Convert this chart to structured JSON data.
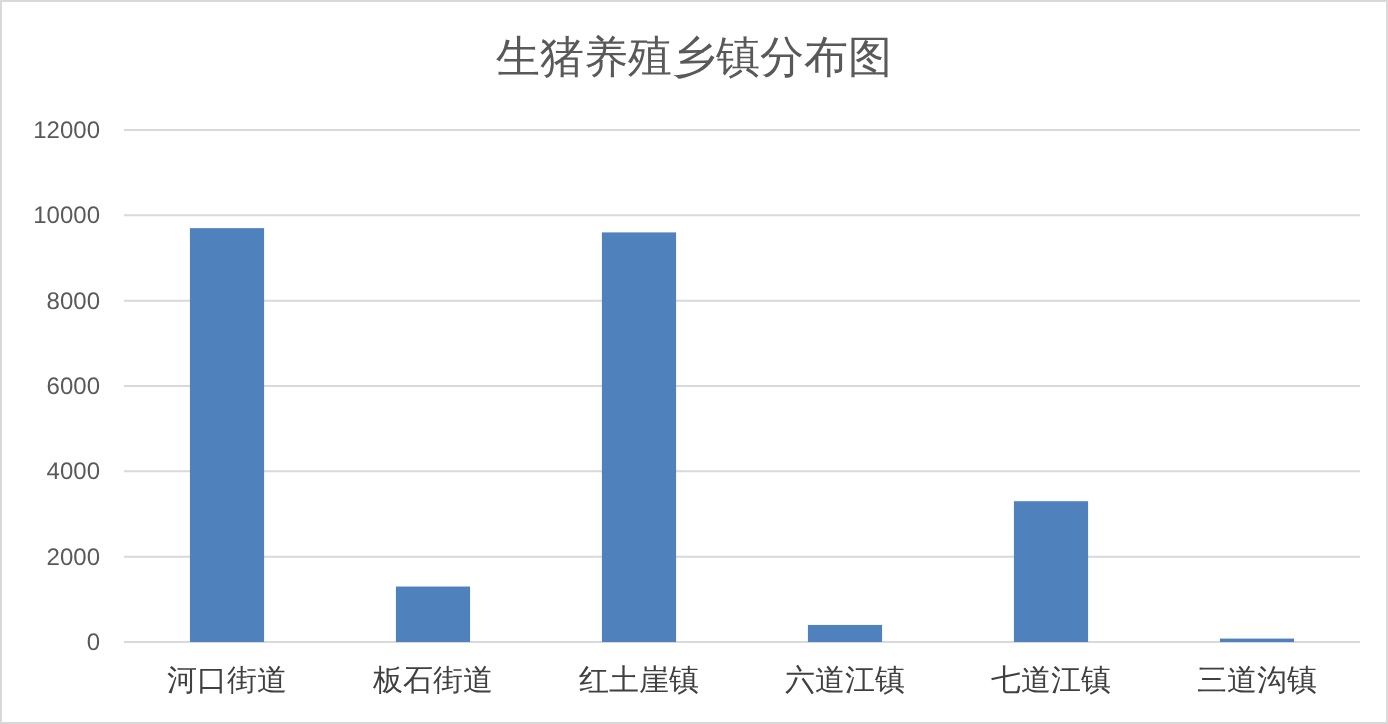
{
  "chart_data": {
    "type": "bar",
    "title": "生猪养殖乡镇分布图",
    "categories": [
      "河口街道",
      "板石街道",
      "红土崖镇",
      "六道江镇",
      "七道江镇",
      "三道沟镇"
    ],
    "values": [
      9700,
      1300,
      9600,
      400,
      3300,
      80
    ],
    "color": "#4f81bd",
    "ylim": [
      0,
      12000
    ],
    "yticks": [
      0,
      2000,
      4000,
      6000,
      8000,
      10000,
      12000
    ],
    "grid": "y"
  }
}
